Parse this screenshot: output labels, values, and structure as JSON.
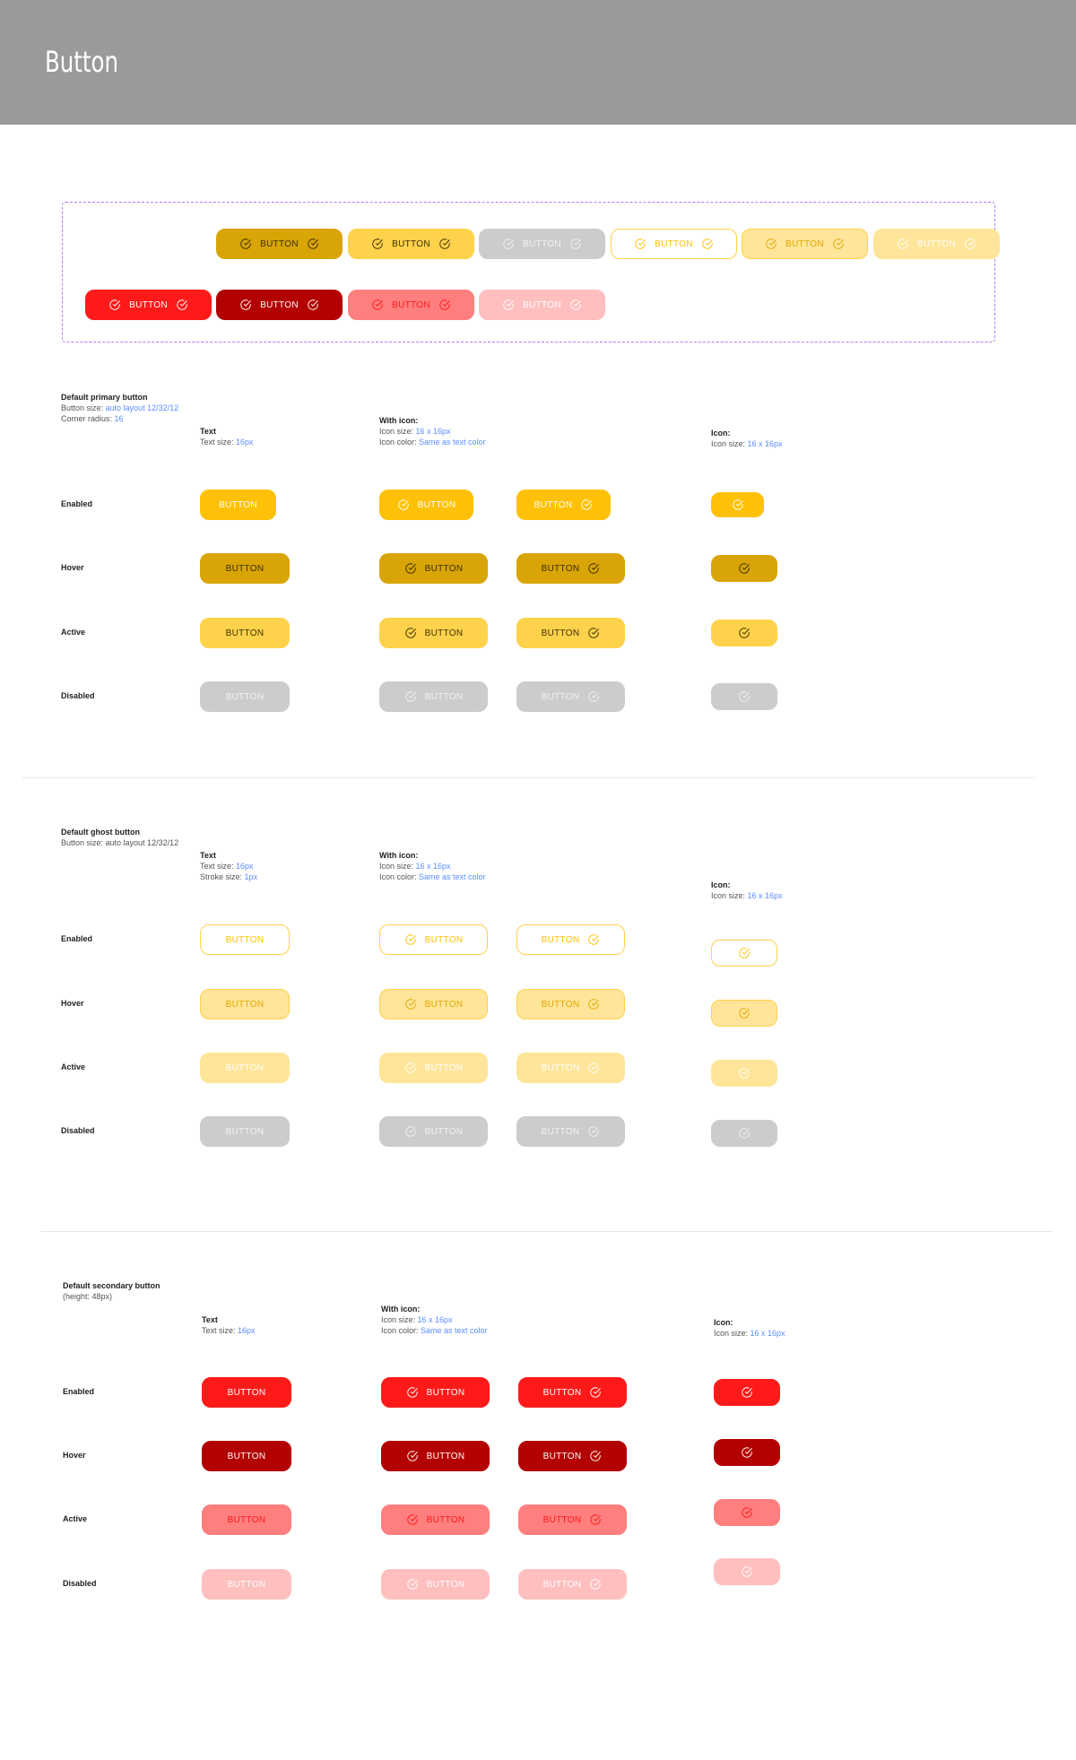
{
  "header": {
    "title": "Button"
  },
  "button_label": "BUTTON",
  "icon": "check-circle-icon",
  "colors": {
    "primary": {
      "enabled": {
        "bg": "#FFC107",
        "fg": "#FFFFFF",
        "border": "#FFC107"
      },
      "hover": {
        "bg": "#D9A406",
        "fg": "#3A3000",
        "border": "#D9A406"
      },
      "active": {
        "bg": "#FFD24C",
        "fg": "#3A3000",
        "border": "#FFD24C"
      },
      "disabled": {
        "bg": "#CCCCCC",
        "fg": "#F2F2F2",
        "border": "#CCCCCC"
      }
    },
    "ghost": {
      "enabled": {
        "bg": "#FFFFFF",
        "fg": "#FFC107",
        "border": "#FFD04C"
      },
      "hover": {
        "bg": "#FFE599",
        "fg": "#E0A800",
        "border": "#FFD04C"
      },
      "active": {
        "bg": "#FFE599",
        "fg": "#FFFFFF",
        "border": "#FFE599"
      },
      "disabled": {
        "bg": "#CCCCCC",
        "fg": "#F2F2F2",
        "border": "#CCCCCC"
      }
    },
    "secondary": {
      "enabled": {
        "bg": "#FF1A1A",
        "fg": "#FFFFFF",
        "border": "#FF1A1A"
      },
      "hover": {
        "bg": "#B30000",
        "fg": "#FFFFFF",
        "border": "#B30000"
      },
      "active": {
        "bg": "#FF7F7F",
        "fg": "#FF1A1A",
        "border": "#FF7F7F"
      },
      "disabled": {
        "bg": "#FFBFBF",
        "fg": "#FFFFFF",
        "border": "#FFBFBF"
      }
    },
    "showcase_border": "#B07CF0",
    "note_value": "#5B8CFF"
  },
  "showcase": {
    "rows": [
      [
        [
          "primary",
          "hover"
        ],
        [
          "primary",
          "active"
        ],
        [
          "primary",
          "disabled"
        ],
        [
          "ghost",
          "enabled"
        ],
        [
          "ghost",
          "hover"
        ],
        [
          "ghost",
          "active"
        ]
      ],
      [
        [
          "secondary",
          "enabled"
        ],
        [
          "secondary",
          "hover"
        ],
        [
          "secondary",
          "active"
        ],
        [
          "secondary",
          "disabled"
        ]
      ]
    ]
  },
  "sections": [
    {
      "variant": "primary",
      "title": "Default primary button",
      "notes": [
        {
          "label": "Button size: ",
          "value": "auto layout 12/32/12"
        },
        {
          "label": "Corner radius: ",
          "value": "16"
        }
      ],
      "columns": {
        "text": {
          "heading": "Text",
          "notes": [
            {
              "label": "Text size: ",
              "value": "16px"
            }
          ]
        },
        "with_icon": {
          "heading": "With icon:",
          "notes": [
            {
              "label": "Icon size: ",
              "value": "16 x 16px"
            },
            {
              "label": "Icon color: ",
              "value": "Same as text color"
            }
          ]
        },
        "icon": {
          "heading": "Icon:",
          "notes": [
            {
              "label": "Icon size: ",
              "value": "16 x 16px"
            }
          ]
        }
      },
      "states": [
        {
          "key": "enabled",
          "label": "Enabled"
        },
        {
          "key": "hover",
          "label": "Hover"
        },
        {
          "key": "active",
          "label": "Active"
        },
        {
          "key": "disabled",
          "label": "Disabled"
        }
      ]
    },
    {
      "variant": "ghost",
      "title": "Default ghost button",
      "notes": [
        {
          "label": "Button size: auto layout 12/32/12",
          "value": ""
        }
      ],
      "columns": {
        "text": {
          "heading": "Text",
          "notes": [
            {
              "label": "Text size: ",
              "value": "16px"
            },
            {
              "label": "Stroke size: ",
              "value": "1px"
            }
          ]
        },
        "with_icon": {
          "heading": "With icon:",
          "notes": [
            {
              "label": "Icon size: ",
              "value": "16 x 16px"
            },
            {
              "label": "Icon color: ",
              "value": "Same as text color"
            }
          ]
        },
        "icon": {
          "heading": "Icon:",
          "notes": [
            {
              "label": "Icon size: ",
              "value": "16 x 16px"
            }
          ]
        }
      },
      "states": [
        {
          "key": "enabled",
          "label": "Enabled"
        },
        {
          "key": "hover",
          "label": "Hover"
        },
        {
          "key": "active",
          "label": "Active"
        },
        {
          "key": "disabled",
          "label": "Disabled"
        }
      ]
    },
    {
      "variant": "secondary",
      "title": "Default secondary button",
      "notes": [
        {
          "label": "(height: 48px)",
          "value": ""
        }
      ],
      "columns": {
        "text": {
          "heading": "Text",
          "notes": [
            {
              "label": "Text size: ",
              "value": "16px"
            }
          ]
        },
        "with_icon": {
          "heading": "With icon:",
          "notes": [
            {
              "label": "Icon size: ",
              "value": "16 x 16px"
            },
            {
              "label": "Icon color: ",
              "value": "Same as text color"
            }
          ]
        },
        "icon": {
          "heading": "Icon:",
          "notes": [
            {
              "label": "Icon size: ",
              "value": "16 x 16px"
            }
          ]
        }
      },
      "states": [
        {
          "key": "enabled",
          "label": "Enabled"
        },
        {
          "key": "hover",
          "label": "Hover"
        },
        {
          "key": "active",
          "label": "Active"
        },
        {
          "key": "disabled",
          "label": "Disabled"
        }
      ]
    }
  ]
}
